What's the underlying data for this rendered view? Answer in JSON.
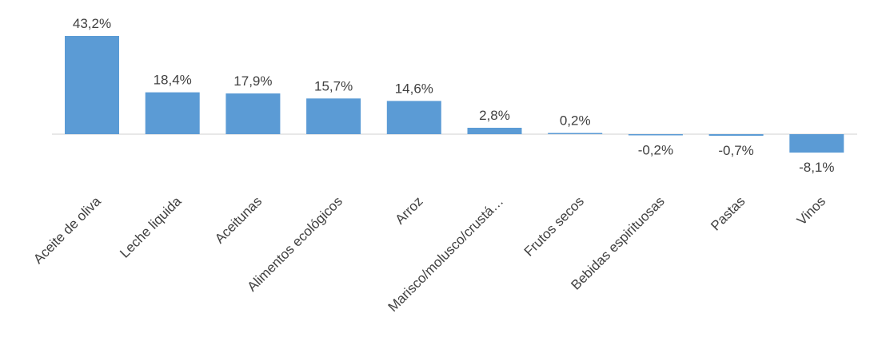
{
  "chart_data": {
    "type": "bar",
    "categories": [
      "Aceite de oliva",
      "Leche liquida",
      "Aceitunas",
      "Alimentos ecológicos",
      "Arroz",
      "Marisco/molusco/crustá…",
      "Frutos secos",
      "Bebidas espirituosas",
      "Pastas",
      "Vinos"
    ],
    "values": [
      43.2,
      18.4,
      17.9,
      15.7,
      14.6,
      2.8,
      0.2,
      -0.2,
      -0.7,
      -8.1
    ],
    "value_labels": [
      "43,2%",
      "18,4%",
      "17,9%",
      "15,7%",
      "14,6%",
      "2,8%",
      "0,2%",
      "-0,2%",
      "-0,7%",
      "-8,1%"
    ],
    "title": "",
    "xlabel": "",
    "ylabel": "",
    "ylim": [
      -10,
      45
    ],
    "grid": false,
    "legend": "none",
    "bar_color": "#5b9bd5"
  }
}
